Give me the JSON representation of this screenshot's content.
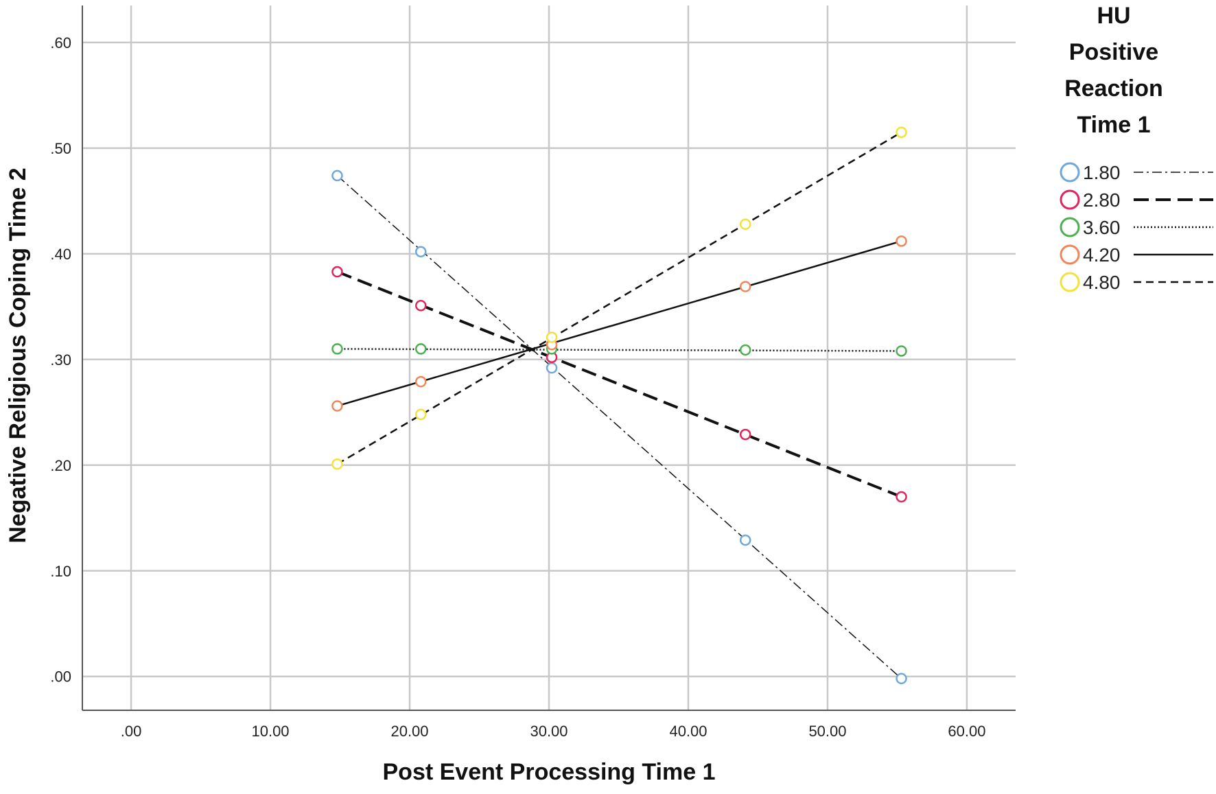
{
  "chart_data": {
    "type": "line",
    "xlabel": "Post Event Processing Time 1",
    "ylabel": "Negative Religious Coping Time 2",
    "xlim": [
      -3.5,
      63.5
    ],
    "ylim": [
      -0.032,
      0.635
    ],
    "xticks": [
      0,
      10,
      20,
      30,
      40,
      50,
      60
    ],
    "xtick_labels": [
      ".00",
      "10.00",
      "20.00",
      "30.00",
      "40.00",
      "50.00",
      "60.00"
    ],
    "yticks": [
      0,
      0.1,
      0.2,
      0.3,
      0.4,
      0.5,
      0.6
    ],
    "ytick_labels": [
      ".00",
      ".10",
      ".20",
      ".30",
      ".40",
      ".50",
      ".60"
    ],
    "grid": true,
    "legend": {
      "title_lines": [
        "HU",
        "Positive",
        "Reaction",
        "Time 1"
      ],
      "placement": "right"
    },
    "series": [
      {
        "name": "1.80",
        "color": "#6fa8dc",
        "line_style": "dash-dot",
        "x": [
          14.8,
          20.8,
          30.2,
          44.1,
          55.3
        ],
        "y": [
          0.474,
          0.402,
          0.292,
          0.129,
          -0.002
        ]
      },
      {
        "name": "2.80",
        "color": "#e0245e",
        "line_style": "long-dash",
        "x": [
          14.8,
          20.8,
          30.2,
          44.1,
          55.3
        ],
        "y": [
          0.383,
          0.351,
          0.302,
          0.229,
          0.17
        ]
      },
      {
        "name": "3.60",
        "color": "#4caf50",
        "line_style": "dotted",
        "x": [
          14.8,
          20.8,
          30.2,
          44.1,
          55.3
        ],
        "y": [
          0.31,
          0.31,
          0.31,
          0.309,
          0.308
        ]
      },
      {
        "name": "4.20",
        "color": "#f0875a",
        "line_style": "solid",
        "x": [
          14.8,
          20.8,
          30.2,
          44.1,
          55.3
        ],
        "y": [
          0.256,
          0.279,
          0.314,
          0.369,
          0.412
        ]
      },
      {
        "name": "4.80",
        "color": "#f2e23a",
        "line_style": "short-dash",
        "x": [
          14.8,
          20.8,
          30.2,
          44.1,
          55.3
        ],
        "y": [
          0.201,
          0.248,
          0.321,
          0.428,
          0.515
        ]
      }
    ]
  }
}
